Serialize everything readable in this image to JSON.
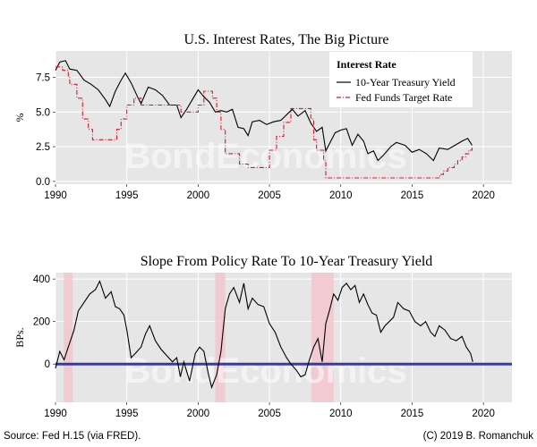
{
  "watermark": "BondEconomics",
  "footer": {
    "source": "Source: Fed H.15 (via FRED).",
    "copyright": "(C) 2019 B. Romanchuk"
  },
  "colors": {
    "panel": "#e6e6e6",
    "grid": "#ffffff",
    "ten_year": "#000000",
    "fed_funds": "#e8112d",
    "zero_line": "#3b3b9e",
    "recession": "#f2c6cc"
  },
  "chart_data": [
    {
      "type": "line",
      "title": "U.S. Interest Rates, The Big Picture",
      "xlabel": "",
      "ylabel": "%",
      "xlim": [
        1990,
        2022
      ],
      "ylim": [
        -0.2,
        9.4
      ],
      "x_ticks": [
        1990,
        1995,
        2000,
        2005,
        2010,
        2015,
        2020
      ],
      "x_tick_labels": [
        "1990",
        "1995",
        "2000",
        "2005",
        "2010",
        "2015",
        "2020"
      ],
      "y_ticks": [
        0,
        2.5,
        5,
        7.5
      ],
      "y_tick_labels": [
        "0.0",
        "2.5",
        "5.0",
        "7.5"
      ],
      "legend": {
        "title": "Interest Rate",
        "position": "top-right",
        "items": [
          "10-Year Treasury Yield",
          "Fed Funds Target Rate"
        ]
      },
      "series": [
        {
          "name": "10-Year Treasury Yield",
          "x": [
            1990.0,
            1990.3,
            1990.7,
            1991.0,
            1991.5,
            1992.0,
            1992.5,
            1993.0,
            1993.5,
            1993.8,
            1994.2,
            1994.6,
            1994.9,
            1995.3,
            1995.8,
            1996.0,
            1996.5,
            1997.0,
            1997.5,
            1998.0,
            1998.5,
            1998.8,
            1999.2,
            1999.6,
            2000.0,
            2000.4,
            2000.8,
            2001.2,
            2001.6,
            2002.0,
            2002.4,
            2002.8,
            2003.2,
            2003.5,
            2003.8,
            2004.3,
            2004.8,
            2005.3,
            2005.8,
            2006.3,
            2006.6,
            2007.0,
            2007.5,
            2007.9,
            2008.3,
            2008.7,
            2008.95,
            2009.3,
            2009.6,
            2010.0,
            2010.4,
            2010.8,
            2011.2,
            2011.6,
            2011.9,
            2012.3,
            2012.6,
            2013.0,
            2013.5,
            2013.9,
            2014.5,
            2015.0,
            2015.5,
            2016.0,
            2016.5,
            2016.9,
            2017.5,
            2018.0,
            2018.5,
            2018.9,
            2019.2
          ],
          "values": [
            8.0,
            8.6,
            8.7,
            8.1,
            8.0,
            7.3,
            7.0,
            6.6,
            5.9,
            5.4,
            6.5,
            7.3,
            7.8,
            7.1,
            6.0,
            5.6,
            6.8,
            6.6,
            6.2,
            5.5,
            5.5,
            4.6,
            5.2,
            5.9,
            6.6,
            6.1,
            5.7,
            5.0,
            5.1,
            5.0,
            5.2,
            3.9,
            3.8,
            3.3,
            4.3,
            4.4,
            4.1,
            4.3,
            4.4,
            4.9,
            5.2,
            4.7,
            5.1,
            4.2,
            3.6,
            3.9,
            2.2,
            2.9,
            3.5,
            3.7,
            3.8,
            2.6,
            3.4,
            2.9,
            2.0,
            2.2,
            1.5,
            1.9,
            2.5,
            2.8,
            2.6,
            2.1,
            2.3,
            2.0,
            1.5,
            2.4,
            2.3,
            2.6,
            2.9,
            3.1,
            2.6
          ]
        },
        {
          "name": "Fed Funds Target Rate",
          "x": [
            1990.0,
            1990.5,
            1990.9,
            1991.0,
            1991.5,
            1991.9,
            1992.3,
            1992.6,
            1994.0,
            1994.3,
            1994.6,
            1995.0,
            1995.5,
            1996.0,
            1997.2,
            1998.8,
            1999.5,
            2000.0,
            2000.4,
            2001.0,
            2001.3,
            2001.6,
            2001.9,
            2002.9,
            2003.5,
            2004.5,
            2005.0,
            2005.5,
            2006.0,
            2006.5,
            2007.7,
            2007.9,
            2008.1,
            2008.3,
            2008.8,
            2008.95,
            2015.95,
            2016.95,
            2017.2,
            2017.5,
            2017.95,
            2018.2,
            2018.5,
            2018.75,
            2018.97,
            2019.2
          ],
          "values": [
            8.25,
            8.0,
            7.5,
            7.0,
            6.0,
            4.5,
            3.75,
            3.0,
            3.0,
            3.75,
            4.5,
            5.5,
            6.0,
            5.5,
            5.5,
            5.0,
            5.0,
            5.5,
            6.5,
            6.0,
            5.0,
            3.75,
            2.0,
            1.25,
            1.0,
            1.0,
            2.25,
            3.25,
            4.25,
            5.25,
            5.25,
            4.5,
            3.0,
            2.25,
            1.5,
            0.25,
            0.25,
            0.5,
            0.75,
            1.0,
            1.25,
            1.5,
            1.75,
            2.0,
            2.25,
            2.5
          ]
        }
      ]
    },
    {
      "type": "line",
      "title": "Slope From Policy Rate To 10-Year Treasury Yield",
      "xlabel": "",
      "ylabel": "BPs.",
      "xlim": [
        1990,
        2022
      ],
      "ylim": [
        -180,
        430
      ],
      "x_ticks": [
        1990,
        1995,
        2000,
        2005,
        2010,
        2015,
        2020
      ],
      "x_tick_labels": [
        "1990",
        "1995",
        "2000",
        "2005",
        "2010",
        "2015",
        "2020"
      ],
      "y_ticks": [
        0,
        200,
        400
      ],
      "y_tick_labels": [
        "0",
        "200",
        "400"
      ],
      "zero_line": 0,
      "recessions": [
        [
          1990.58,
          1991.2
        ],
        [
          2001.2,
          2001.9
        ],
        [
          2007.95,
          2009.5
        ]
      ],
      "series": [
        {
          "name": "Slope",
          "x": [
            1990.0,
            1990.3,
            1990.6,
            1990.9,
            1991.3,
            1991.6,
            1992.0,
            1992.4,
            1992.8,
            1993.1,
            1993.5,
            1993.9,
            1994.2,
            1994.5,
            1994.8,
            1995.0,
            1995.3,
            1995.6,
            1996.0,
            1996.3,
            1996.6,
            1997.0,
            1997.4,
            1997.8,
            1998.2,
            1998.5,
            1998.75,
            1999.0,
            1999.4,
            1999.8,
            2000.1,
            2000.4,
            2000.7,
            2000.95,
            2001.3,
            2001.6,
            2001.9,
            2002.2,
            2002.5,
            2002.9,
            2003.2,
            2003.5,
            2003.8,
            2004.2,
            2004.6,
            2005.0,
            2005.4,
            2005.8,
            2006.2,
            2006.5,
            2006.9,
            2007.2,
            2007.5,
            2007.8,
            2008.1,
            2008.4,
            2008.7,
            2008.95,
            2009.2,
            2009.5,
            2009.8,
            2010.1,
            2010.4,
            2010.7,
            2011.0,
            2011.3,
            2011.6,
            2011.9,
            2012.2,
            2012.5,
            2012.8,
            2013.1,
            2013.4,
            2013.7,
            2014.0,
            2014.4,
            2014.8,
            2015.2,
            2015.6,
            2015.95,
            2016.3,
            2016.6,
            2016.9,
            2017.3,
            2017.7,
            2018.1,
            2018.5,
            2018.8,
            2019.1,
            2019.25
          ],
          "values": [
            -20,
            60,
            20,
            80,
            160,
            250,
            290,
            330,
            350,
            390,
            310,
            340,
            270,
            260,
            230,
            160,
            30,
            50,
            80,
            140,
            180,
            110,
            70,
            40,
            10,
            30,
            -60,
            10,
            -80,
            50,
            80,
            60,
            -40,
            -110,
            -50,
            60,
            260,
            330,
            360,
            290,
            380,
            260,
            310,
            280,
            270,
            190,
            150,
            80,
            30,
            0,
            -30,
            -60,
            -50,
            20,
            80,
            120,
            10,
            190,
            250,
            330,
            300,
            360,
            380,
            350,
            370,
            290,
            330,
            280,
            240,
            230,
            150,
            180,
            200,
            220,
            290,
            260,
            250,
            200,
            180,
            200,
            150,
            130,
            180,
            160,
            120,
            110,
            130,
            80,
            50,
            10
          ]
        }
      ]
    }
  ]
}
